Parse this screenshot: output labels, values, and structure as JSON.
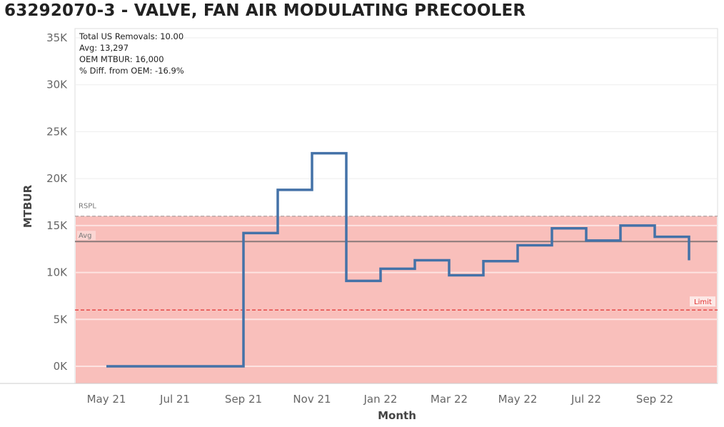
{
  "title": "63292070-3 - VALVE, FAN AIR MODULATING PRECOOLER",
  "chart_data": {
    "type": "line",
    "step": true,
    "title": "63292070-3 - VALVE, FAN AIR MODULATING PRECOOLER",
    "xlabel": "Month",
    "ylabel": "MTBUR",
    "ylim": [
      0,
      35000
    ],
    "yticks": [
      0,
      5000,
      10000,
      15000,
      20000,
      25000,
      30000,
      35000
    ],
    "ytick_labels": [
      "0K",
      "5K",
      "10K",
      "15K",
      "20K",
      "25K",
      "30K",
      "35K"
    ],
    "xtick_labels": [
      "May 21",
      "Jul 21",
      "Sep 21",
      "Nov 21",
      "Jan 22",
      "Mar 22",
      "May 22",
      "Jul 22",
      "Sep 22"
    ],
    "x": [
      "May 21",
      "Jun 21",
      "Jul 21",
      "Aug 21",
      "Sep 21",
      "Oct 21",
      "Nov 21",
      "Dec 21",
      "Jan 22",
      "Feb 22",
      "Mar 22",
      "Apr 22",
      "May 22",
      "Jun 22",
      "Jul 22",
      "Aug 22",
      "Sep 22",
      "Oct 22"
    ],
    "values": [
      0,
      0,
      0,
      0,
      14200,
      18800,
      22700,
      9100,
      10400,
      11300,
      9700,
      11200,
      12900,
      14700,
      13400,
      15000,
      13800,
      11300
    ],
    "reference_lines": [
      {
        "label": "RSPL",
        "value": 16000,
        "style": "dashed",
        "color": "#b0a0a0"
      },
      {
        "label": "Avg",
        "value": 13297,
        "style": "solid",
        "color": "#8a7a7a"
      },
      {
        "label": "Limit",
        "value": 6000,
        "style": "dashed",
        "color": "#e03030"
      }
    ],
    "band": {
      "from": -1800,
      "to": 16000,
      "color": "#f9bfbb"
    },
    "line_color": "#4472a8",
    "annotations": [
      "Total US Removals: 10.00",
      "Avg: 13,297",
      "OEM MTBUR: 16,000",
      "% Diff. from OEM: -16.9%"
    ],
    "grid": true
  }
}
